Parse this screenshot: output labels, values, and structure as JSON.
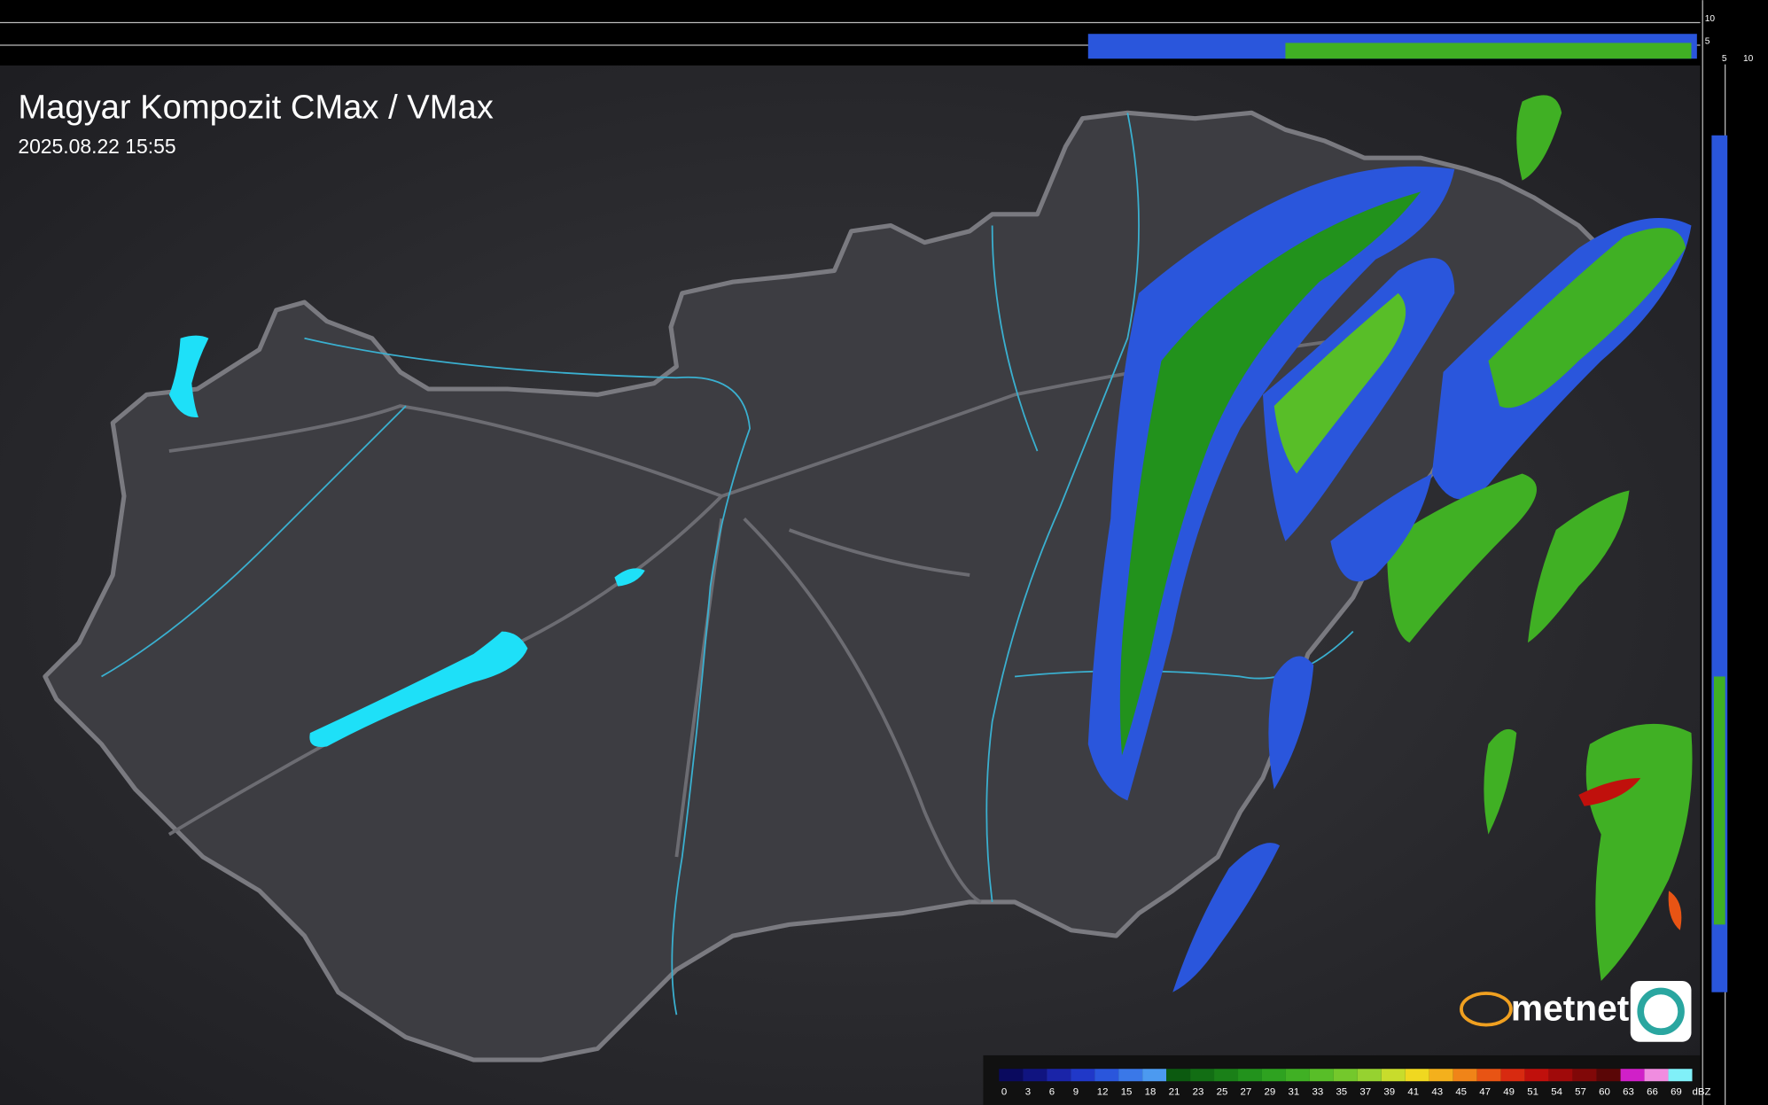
{
  "header": {
    "title": "Magyar Kompozit CMax / VMax",
    "timestamp": "2025.08.22 15:55"
  },
  "profile_strip": {
    "top_labels": [
      "10",
      "5"
    ],
    "side_labels": [
      "5",
      "10"
    ]
  },
  "logo": {
    "text": "metnet"
  },
  "legend": {
    "unit": "dBZ",
    "values": [
      0,
      3,
      6,
      9,
      12,
      15,
      18,
      21,
      23,
      25,
      27,
      29,
      31,
      33,
      35,
      37,
      39,
      41,
      43,
      45,
      47,
      49,
      51,
      54,
      57,
      60,
      63,
      66,
      69
    ],
    "colors": [
      "#0a0a5e",
      "#101480",
      "#1a24a8",
      "#2038c8",
      "#2a56dc",
      "#3a78e8",
      "#4c9af0",
      "#0c5a10",
      "#126e14",
      "#1a8018",
      "#22921c",
      "#2ea220",
      "#40b024",
      "#58be28",
      "#74c82c",
      "#96d230",
      "#c8dc2c",
      "#f0d820",
      "#f4b01c",
      "#f08418",
      "#e85414",
      "#d82a10",
      "#c0100c",
      "#a00a0a",
      "#800808",
      "#5a0606",
      "#d020c8",
      "#f08ce0",
      "#80f0f8"
    ]
  }
}
